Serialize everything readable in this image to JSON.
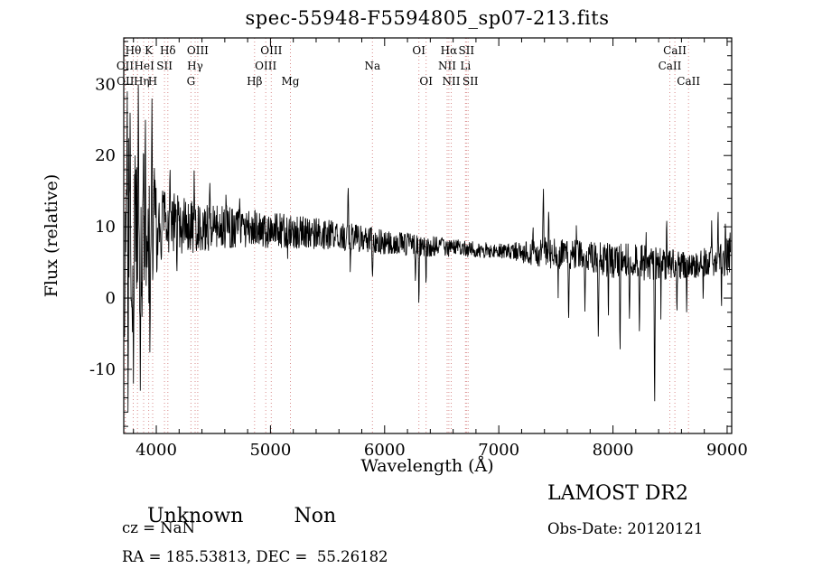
{
  "chart_data": {
    "type": "line",
    "title": "spec-55948-F5594805_sp07-213.fits",
    "xlabel": "Wavelength (Å)",
    "ylabel": "Flux (relative)",
    "xlim": [
      3715,
      9040
    ],
    "ylim": [
      -19,
      36.5
    ],
    "xticks": [
      4000,
      5000,
      6000,
      7000,
      8000,
      9000
    ],
    "x_minor_step": 200,
    "yticks": [
      -10,
      0,
      10,
      20,
      30
    ],
    "y_minor_step": 2,
    "grid": false,
    "legend": "none",
    "line_color": "#000000",
    "marker_color": "#d98c8c",
    "sample_start": 3722,
    "sample_end": 9030,
    "sample_step": 3,
    "noise_seed": 20120121,
    "flux_envelope": [
      [
        3718,
        8
      ],
      [
        3760,
        9
      ],
      [
        3850,
        10
      ],
      [
        4000,
        10.5
      ],
      [
        4400,
        10
      ],
      [
        4800,
        9.8
      ],
      [
        5200,
        9.3
      ],
      [
        5600,
        8.8
      ],
      [
        6000,
        7.8
      ],
      [
        6400,
        7.3
      ],
      [
        6800,
        6.8
      ],
      [
        7200,
        6.5
      ],
      [
        7600,
        6.2
      ],
      [
        8000,
        5.3
      ],
      [
        8400,
        4.8
      ],
      [
        8700,
        4.5
      ],
      [
        9035,
        6
      ]
    ],
    "noise_amplitude": [
      [
        3718,
        18
      ],
      [
        3800,
        14
      ],
      [
        3920,
        12
      ],
      [
        3990,
        8
      ],
      [
        4050,
        5
      ],
      [
        4200,
        4.2
      ],
      [
        4500,
        3.2
      ],
      [
        4900,
        2.6
      ],
      [
        5400,
        2.2
      ],
      [
        5900,
        1.8
      ],
      [
        6300,
        1.6
      ],
      [
        6700,
        1.2
      ],
      [
        7100,
        1.1
      ],
      [
        7350,
        2.2
      ],
      [
        7700,
        2.2
      ],
      [
        8100,
        2.6
      ],
      [
        8400,
        2.4
      ],
      [
        8700,
        1.8
      ],
      [
        9035,
        2.8
      ]
    ],
    "spectral_features": [
      [
        3745,
        31,
        8
      ],
      [
        3752,
        -16,
        6
      ],
      [
        3770,
        26,
        6
      ],
      [
        3800,
        -12,
        6
      ],
      [
        3842,
        30,
        7
      ],
      [
        3860,
        -13,
        6
      ],
      [
        3905,
        25,
        6
      ],
      [
        3945,
        -10,
        6
      ],
      [
        3962,
        28,
        6
      ],
      [
        4120,
        19.5,
        7
      ],
      [
        4180,
        2,
        6
      ],
      [
        4332,
        19,
        6
      ],
      [
        4470,
        17,
        6
      ],
      [
        4610,
        14.5,
        5
      ],
      [
        4730,
        14,
        5
      ],
      [
        5150,
        5.5,
        5
      ],
      [
        5680,
        16.5,
        7
      ],
      [
        5700,
        2.5,
        5
      ],
      [
        5893,
        2,
        7
      ],
      [
        6270,
        1,
        5
      ],
      [
        6300,
        -2.5,
        6
      ],
      [
        6363,
        0.5,
        5
      ],
      [
        7300,
        11,
        5
      ],
      [
        7390,
        16.5,
        7
      ],
      [
        7437,
        13,
        6
      ],
      [
        7520,
        0,
        5
      ],
      [
        7612,
        -5,
        6
      ],
      [
        7680,
        11,
        5
      ],
      [
        7755,
        -3,
        6
      ],
      [
        7872,
        -7,
        7
      ],
      [
        7960,
        -4,
        5
      ],
      [
        8062,
        -9,
        7
      ],
      [
        8145,
        -5,
        6
      ],
      [
        8232,
        -7,
        6
      ],
      [
        8290,
        10,
        5
      ],
      [
        8365,
        -17.5,
        7
      ],
      [
        8420,
        -3,
        5
      ],
      [
        8470,
        12,
        5
      ],
      [
        8560,
        -3.5,
        5
      ],
      [
        8645,
        -2,
        5
      ],
      [
        8790,
        -1,
        5
      ],
      [
        8865,
        12,
        5
      ],
      [
        8920,
        13,
        6
      ],
      [
        8950,
        -3,
        5
      ],
      [
        8985,
        12,
        5
      ],
      [
        9025,
        11,
        4
      ]
    ],
    "line_markers": [
      {
        "wavelength": 3727,
        "label": "OII",
        "row": 2
      },
      {
        "wavelength": 3729,
        "label": "OII",
        "row": 3
      },
      {
        "wavelength": 3798,
        "label": "Hθ",
        "row": 1
      },
      {
        "wavelength": 3835,
        "label": "Hη",
        "row": 3
      },
      {
        "wavelength": 3889,
        "label": "HeI",
        "row": 2
      },
      {
        "wavelength": 3933,
        "label": "K",
        "row": 1
      },
      {
        "wavelength": 3968,
        "label": "H",
        "row": 3
      },
      {
        "wavelength": 4072,
        "label": "SII",
        "row": 2
      },
      {
        "wavelength": 4101,
        "label": "Hδ",
        "row": 1
      },
      {
        "wavelength": 4304,
        "label": "G",
        "row": 3
      },
      {
        "wavelength": 4340,
        "label": "Hγ",
        "row": 2
      },
      {
        "wavelength": 4363,
        "label": "OIII",
        "row": 1
      },
      {
        "wavelength": 4861,
        "label": "Hβ",
        "row": 3
      },
      {
        "wavelength": 4959,
        "label": "OIII",
        "row": 2
      },
      {
        "wavelength": 5007,
        "label": "OIII",
        "row": 1
      },
      {
        "wavelength": 5175,
        "label": "Mg",
        "row": 3
      },
      {
        "wavelength": 5893,
        "label": "Na",
        "row": 2
      },
      {
        "wavelength": 6300,
        "label": "OI",
        "row": 1
      },
      {
        "wavelength": 6363,
        "label": "OI",
        "row": 3
      },
      {
        "wavelength": 6548,
        "label": "NII",
        "row": 2
      },
      {
        "wavelength": 6563,
        "label": "Hα",
        "row": 1
      },
      {
        "wavelength": 6583,
        "label": "NII",
        "row": 3
      },
      {
        "wavelength": 6708,
        "label": "Li",
        "row": 2
      },
      {
        "wavelength": 6716,
        "label": "SII",
        "row": 1
      },
      {
        "wavelength": 6731,
        "label": "SII",
        "row": 3
      },
      {
        "wavelength": 8498,
        "label": "CaII",
        "row": 2
      },
      {
        "wavelength": 8542,
        "label": "CaII",
        "row": 1
      },
      {
        "wavelength": 8662,
        "label": "CaII",
        "row": 3
      }
    ]
  },
  "annotations": {
    "class_label": "Unknown",
    "subclass_label": "Non",
    "cz_label": "cz = NaN",
    "ra_dec_label": "RA = 185.53813, DEC =  55.26182",
    "survey_label": "LAMOST DR2",
    "obs_date_label": "Obs-Date: 20120121"
  }
}
